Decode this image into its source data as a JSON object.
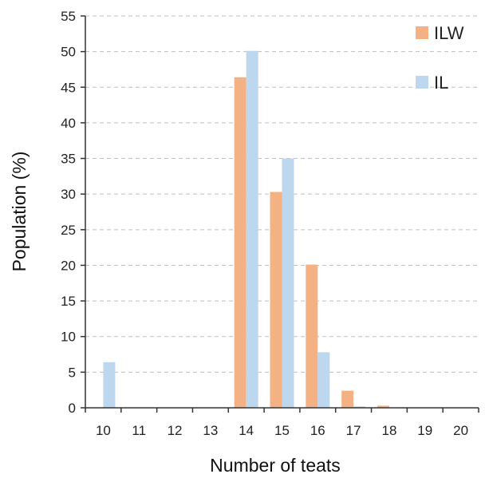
{
  "chart_data": {
    "type": "bar",
    "xlabel": "Number of teats",
    "ylabel": "Population (%)",
    "ylim": [
      0,
      55
    ],
    "ytick_step": 5,
    "grid": "horizontal dashed",
    "legend_position": "top-right",
    "categories": [
      "10",
      "11",
      "12",
      "13",
      "14",
      "15",
      "16",
      "17",
      "18",
      "19",
      "20"
    ],
    "series": [
      {
        "name": "ILW",
        "color": "#F4B183",
        "values": [
          0,
          0,
          0,
          0,
          46.4,
          30.3,
          20.1,
          2.4,
          0.3,
          0,
          0
        ]
      },
      {
        "name": "IL",
        "color": "#BDD7EE",
        "values": [
          6.4,
          0,
          0,
          0,
          50.1,
          35.0,
          7.8,
          0.2,
          0,
          0,
          0
        ]
      }
    ]
  }
}
